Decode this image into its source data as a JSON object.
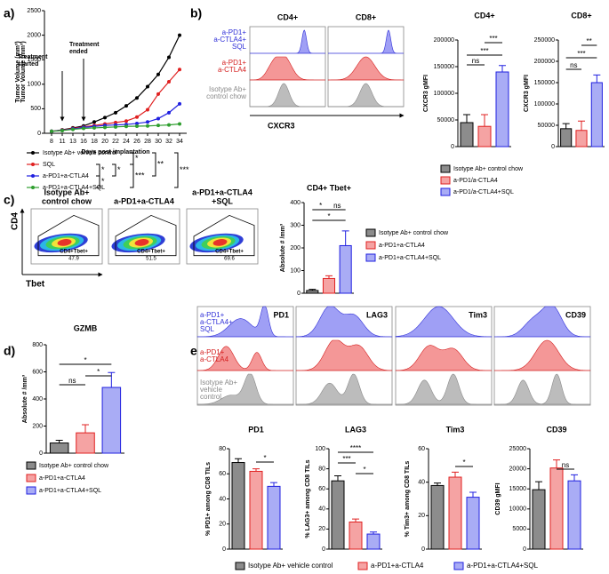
{
  "chart_data": [
    {
      "type": "line",
      "panel_label": "a)",
      "ylabel": "Tumor Volume (mm³)",
      "xlabel": "Days post implantation",
      "categories": [
        "8",
        "11",
        "13",
        "16",
        "18",
        "20",
        "22",
        "24",
        "26",
        "28",
        "30",
        "32",
        "34"
      ],
      "ylim": [
        0,
        2500
      ],
      "yticks": [
        0,
        500,
        1000,
        1500,
        2000,
        2500
      ],
      "annotations": [
        [
          "Treatment",
          "started"
        ],
        [
          "Treatment",
          "ended"
        ]
      ],
      "series": [
        {
          "name": "Isotype Ab+ vehicle control",
          "color": "#000000",
          "values": [
            40,
            70,
            110,
            150,
            230,
            320,
            420,
            560,
            720,
            950,
            1200,
            1550,
            2000
          ]
        },
        {
          "name": "SQL",
          "color": "#e02020",
          "values": [
            40,
            65,
            100,
            130,
            160,
            190,
            220,
            250,
            330,
            480,
            800,
            1050,
            1300
          ]
        },
        {
          "name": "a-PD1+a-CTLA4",
          "color": "#2020e0",
          "values": [
            40,
            60,
            90,
            120,
            140,
            160,
            170,
            180,
            200,
            230,
            300,
            420,
            600
          ]
        },
        {
          "name": "a-PD1+a-CTLA4+SQL",
          "color": "#2e9e2e",
          "values": [
            40,
            55,
            80,
            100,
            110,
            120,
            130,
            140,
            145,
            150,
            160,
            170,
            190
          ]
        }
      ],
      "significance": [
        "*",
        "*",
        "**",
        "***",
        "*",
        "***",
        "*"
      ]
    },
    {
      "type": "overlay",
      "panel_label": "b)",
      "titles": [
        "CD4+",
        "CD8+"
      ],
      "groups": [
        [
          "a-PD1+",
          "a-CTLA4+",
          "SQL"
        ],
        [
          "a-PD1+",
          "a-CTLA4"
        ],
        [
          "Isotype Ab+",
          "control chow"
        ]
      ],
      "group_colors": [
        "#3030d8",
        "#d42020",
        "#8a8a8a"
      ],
      "fill_colors": [
        "#7f7ff2",
        "#f07474",
        "#a6a6a6"
      ],
      "xlabel": "CXCR3"
    },
    {
      "type": "bar",
      "title": "CD4+",
      "ylabel": "CXCR3 gMFI",
      "categories": [
        "Isotype Ab+ control chow",
        "a-PD1/a-CTLA4",
        "a-PD1/a-CTLA4+SQL"
      ],
      "values": [
        45000,
        38000,
        140000
      ],
      "errors": [
        15000,
        22000,
        12000
      ],
      "colors": [
        "#8c8c8c",
        "#f5a3a3",
        "#a9acf5"
      ],
      "edge_colors": [
        "#000000",
        "#e02020",
        "#2020e0"
      ],
      "ylim": [
        0,
        200000
      ],
      "yticks": [
        0,
        50000,
        100000,
        150000,
        200000
      ],
      "significance": [
        "ns",
        "***",
        "***"
      ]
    },
    {
      "type": "bar",
      "title": "CD8+",
      "ylabel": "CXCR3 gMFI",
      "values": [
        42000,
        38000,
        150000
      ],
      "errors": [
        12000,
        22000,
        18000
      ],
      "colors": [
        "#8c8c8c",
        "#f5a3a3",
        "#a9acf5"
      ],
      "edge_colors": [
        "#000000",
        "#e02020",
        "#2020e0"
      ],
      "ylim": [
        0,
        250000
      ],
      "yticks": [
        0,
        50000,
        100000,
        150000,
        200000,
        250000
      ],
      "significance": [
        "ns",
        "***",
        "**"
      ]
    },
    {
      "type": "density",
      "panel_label": "c)",
      "titles": [
        [
          "Isotype Ab+",
          "control chow"
        ],
        [
          "a-PD1+a-CTLA4"
        ],
        [
          "a-PD1+a-CTLA4",
          "+SQL"
        ]
      ],
      "gate_label": "CD4+Tbet+",
      "gate_values": [
        47.9,
        51.5,
        69.6
      ],
      "ylabel": "CD4",
      "xlabel": "Tbet"
    },
    {
      "type": "bar",
      "title": "CD4+ Tbet+",
      "ylabel": "Absolute # /mm³",
      "categories": [
        "Isotype Ab+ control chow",
        "a-PD1+a-CTLA4",
        "a-PD1+a-CTLA4+SQL"
      ],
      "values": [
        12,
        65,
        210
      ],
      "errors": [
        5,
        12,
        65
      ],
      "colors": [
        "#8c8c8c",
        "#f5a3a3",
        "#a9acf5"
      ],
      "edge_colors": [
        "#000000",
        "#e02020",
        "#2020e0"
      ],
      "ylim": [
        0,
        400
      ],
      "yticks": [
        0,
        100,
        200,
        300,
        400
      ],
      "significance": [
        "*",
        "*",
        "ns"
      ]
    },
    {
      "type": "bar",
      "panel_label": "d)",
      "title": "GZMB",
      "ylabel": "Absolute # /mm³",
      "categories": [
        "Isotype Ab+ control chow",
        "a-PD1+a-CTLA4",
        "a-PD1+a-CTLA4+SQL"
      ],
      "values": [
        75,
        150,
        485
      ],
      "errors": [
        20,
        60,
        110
      ],
      "colors": [
        "#8c8c8c",
        "#f5a3a3",
        "#a9acf5"
      ],
      "edge_colors": [
        "#000000",
        "#e02020",
        "#2020e0"
      ],
      "ylim": [
        0,
        800
      ],
      "yticks": [
        0,
        200,
        400,
        600,
        800
      ],
      "significance": [
        "ns",
        "*",
        "*"
      ]
    },
    {
      "type": "overlay",
      "panel_label": "e)",
      "titles": [
        "PD1",
        "LAG3",
        "Tim3",
        "CD39"
      ],
      "groups": [
        [
          "a-PD1+",
          "a-CTLA4+",
          "SQL"
        ],
        [
          "a-PD1+",
          "a-CTLA4"
        ],
        [
          "Isotype Ab+",
          "vehicle",
          "control"
        ]
      ],
      "group_colors": [
        "#3030d8",
        "#d42020",
        "#8a8a8a"
      ],
      "fill_colors": [
        "#7f7ff2",
        "#f07474",
        "#a6a6a6"
      ]
    },
    {
      "type": "bar",
      "title": "PD1",
      "ylabel": "% PD1+ among CD8 TILs",
      "categories": [
        "Isotype Ab+ vehicle control",
        "a-PD1+a-CTLA4",
        "a-PD1+a-CTLA4+SQL"
      ],
      "values": [
        69,
        62,
        50
      ],
      "errors": [
        3,
        2,
        3
      ],
      "colors": [
        "#8c8c8c",
        "#f5a3a3",
        "#a9acf5"
      ],
      "edge_colors": [
        "#000000",
        "#e02020",
        "#2020e0"
      ],
      "ylim": [
        0,
        80
      ],
      "yticks": [
        0,
        20,
        40,
        60,
        80
      ],
      "significance": [
        "*"
      ]
    },
    {
      "type": "bar",
      "title": "LAG3",
      "ylabel": "% LAG3+ among CD8 TILs",
      "values": [
        68,
        27,
        15
      ],
      "errors": [
        5,
        3,
        2
      ],
      "colors": [
        "#8c8c8c",
        "#f5a3a3",
        "#a9acf5"
      ],
      "edge_colors": [
        "#000000",
        "#e02020",
        "#2020e0"
      ],
      "ylim": [
        0,
        100
      ],
      "yticks": [
        0,
        20,
        40,
        60,
        80,
        100
      ],
      "significance": [
        "***",
        "****",
        "*"
      ]
    },
    {
      "type": "bar",
      "title": "Tim3",
      "ylabel": "% Tim3+ among CD8 TILs",
      "values": [
        38,
        43,
        31
      ],
      "errors": [
        1.5,
        3,
        3
      ],
      "colors": [
        "#8c8c8c",
        "#f5a3a3",
        "#a9acf5"
      ],
      "edge_colors": [
        "#000000",
        "#e02020",
        "#2020e0"
      ],
      "ylim": [
        0,
        60
      ],
      "yticks": [
        0,
        20,
        40,
        60
      ],
      "significance": [
        "*"
      ]
    },
    {
      "type": "bar",
      "title": "CD39",
      "ylabel": "CD39 gMFI",
      "values": [
        14800,
        20200,
        17000
      ],
      "errors": [
        2000,
        2000,
        1500
      ],
      "colors": [
        "#8c8c8c",
        "#f5a3a3",
        "#a9acf5"
      ],
      "edge_colors": [
        "#000000",
        "#e02020",
        "#2020e0"
      ],
      "ylim": [
        0,
        25000
      ],
      "yticks": [
        0,
        5000,
        10000,
        15000,
        20000,
        25000
      ],
      "significance": [
        "ns"
      ]
    }
  ]
}
